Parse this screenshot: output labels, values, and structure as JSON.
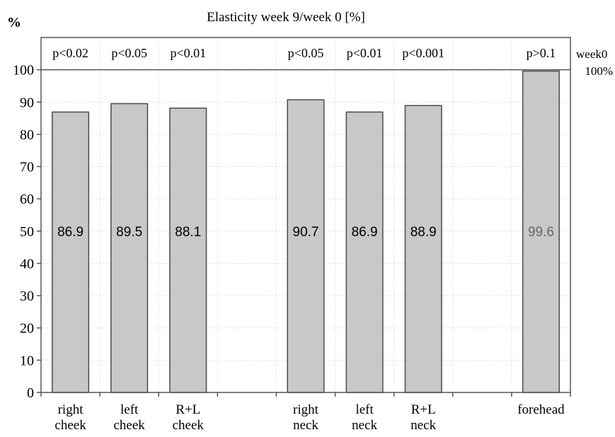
{
  "chart_data": {
    "type": "bar",
    "title": "Elasticity week 9/week 0 [%]",
    "ylabel": "%",
    "xlabel": "",
    "ylim": [
      0,
      110
    ],
    "yticks": [
      0,
      10,
      20,
      30,
      40,
      50,
      60,
      70,
      80,
      90,
      100
    ],
    "grid": true,
    "categories": [
      [
        "right",
        "cheek"
      ],
      [
        "left",
        "cheek"
      ],
      [
        "R+L",
        "cheek"
      ],
      [],
      [
        "right",
        "neck"
      ],
      [
        "left",
        "neck"
      ],
      [
        "R+L",
        "neck"
      ],
      [],
      [
        "forehead"
      ]
    ],
    "values": [
      86.9,
      89.5,
      88.1,
      null,
      90.7,
      86.9,
      88.9,
      null,
      99.6
    ],
    "value_labels": [
      "86.9",
      "89.5",
      "88.1",
      "",
      "90.7",
      "86.9",
      "88.9",
      "",
      "99.6"
    ],
    "p_values": [
      "p<0.02",
      "p<0.05",
      "p<0.01",
      "",
      "p<0.05",
      "p<0.01",
      "p<0.001",
      "",
      "p>0.1"
    ],
    "reference_line": {
      "value": 100,
      "label_lines": [
        "week0",
        "100%"
      ]
    },
    "colors": {
      "bar_fill": "#c8c8c8",
      "bar_stroke": "#4a4a4a",
      "grid": "#d0d0d0",
      "axis": "#555555",
      "faded_label": "#666666"
    }
  }
}
